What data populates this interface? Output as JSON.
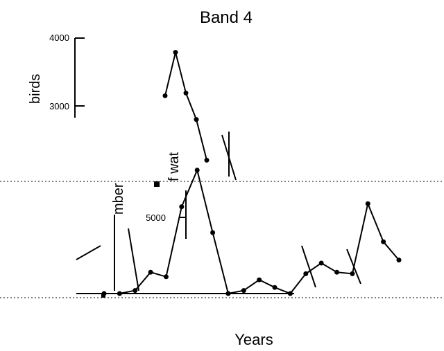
{
  "chart_data": {
    "type": "line",
    "title": "Band 4",
    "xlabel": "Years",
    "ylabel_upper": "birds",
    "ylabel_lower_fragments": [
      "mber",
      "f wat"
    ],
    "upper_axis": {
      "yticks": [
        3000,
        4000
      ],
      "tick_labels": [
        "3000",
        "4000"
      ]
    },
    "lower_axis": {
      "yticks": [
        5000
      ],
      "tick_labels": [
        "5000"
      ]
    },
    "x_tick_labels": [
      "",
      "",
      ""
    ],
    "series": [
      {
        "x": [
          1,
          2,
          3,
          4,
          5
        ],
        "values": [
          3150,
          3790,
          3190,
          2800,
          2200
        ]
      },
      {
        "x": [
          1,
          2,
          3,
          4,
          5,
          6,
          7,
          8,
          9,
          10,
          11,
          12,
          13,
          14,
          15,
          16,
          17,
          18,
          19,
          20
        ],
        "values": [
          0,
          0,
          200,
          1400,
          1100,
          5700,
          8100,
          4000,
          0,
          200,
          900,
          400,
          0,
          1300,
          2000,
          1400,
          1300,
          5900,
          3400,
          2200
        ]
      }
    ],
    "grid": false,
    "legend": "none"
  }
}
